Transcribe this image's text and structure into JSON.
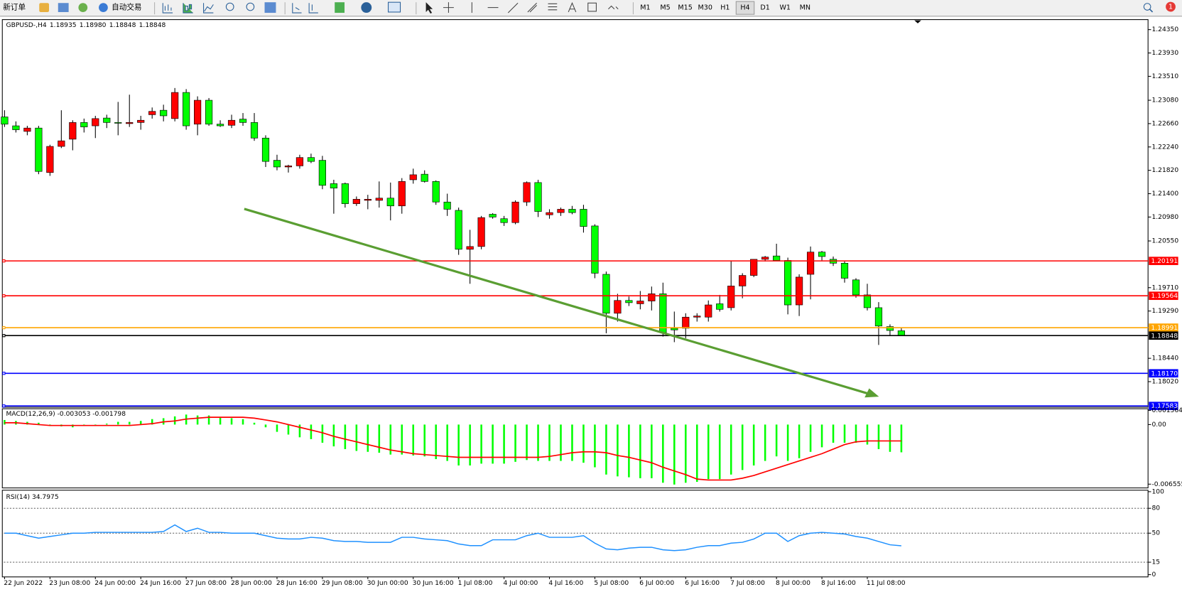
{
  "toolbar": {
    "new_order": "新订单",
    "auto_trading": "自动交易",
    "timeframes": [
      "M1",
      "M5",
      "M15",
      "M30",
      "H1",
      "H4",
      "D1",
      "W1",
      "MN"
    ],
    "active_timeframe": 5,
    "notifications": "1"
  },
  "chart_data": [
    {
      "type": "candlestick",
      "title": "GBPUSD-,H4",
      "quote": [
        "1.18935",
        "1.18980",
        "1.18848",
        "1.18848"
      ],
      "categories": [
        "22 Jun 2022",
        null,
        null,
        null,
        "23 Jun 08:00",
        null,
        null,
        null,
        "24 Jun 00:00",
        null,
        null,
        null,
        "24 Jun 16:00",
        null,
        null,
        null,
        "27 Jun 08:00",
        null,
        null,
        null,
        "28 Jun 00:00",
        null,
        null,
        null,
        "28 Jun 16:00",
        null,
        null,
        null,
        "29 Jun 08:00",
        null,
        null,
        null,
        "30 Jun 00:00",
        null,
        null,
        null,
        "30 Jun 16:00",
        null,
        null,
        null,
        "1 Jul 08:00",
        null,
        null,
        null,
        "4 Jul 00:00",
        null,
        null,
        null,
        "4 Jul 16:00",
        null,
        null,
        null,
        "5 Jul 08:00",
        null,
        null,
        null,
        "6 Jul 00:00",
        null,
        null,
        null,
        "6 Jul 16:00",
        null,
        null,
        null,
        "7 Jul 08:00",
        null,
        null,
        null,
        "8 Jul 00:00",
        null,
        null,
        null,
        "8 Jul 16:00",
        null,
        null,
        null,
        "11 Jul 08:00",
        null,
        null,
        null
      ],
      "open": [
        1.2278,
        1.2262,
        1.2252,
        1.2258,
        1.2178,
        1.2225,
        1.2238,
        1.2268,
        1.2262,
        1.2276,
        1.2268,
        1.2266,
        1.2268,
        1.2282,
        1.229,
        1.2275,
        1.2322,
        1.2265,
        1.2308,
        1.2265,
        1.2263,
        1.2274,
        1.2268,
        1.224,
        1.22,
        1.2188,
        1.219,
        1.2205,
        1.22,
        1.2158,
        1.2158,
        1.2122,
        1.2128,
        1.2128,
        1.2132,
        1.2118,
        1.2165,
        1.2175,
        1.2162,
        1.2125,
        1.211,
        1.204,
        1.2045,
        1.2103,
        1.2095,
        1.2088,
        1.2125,
        1.216,
        1.2102,
        1.2106,
        1.2112,
        1.2112,
        1.2082,
        1.1995,
        1.1925,
        1.1948,
        1.1942,
        1.1947,
        1.196,
        1.1898,
        1.1898,
        1.1918,
        1.1918,
        1.1942,
        1.1935,
        1.1974,
        1.1993,
        1.2022,
        1.2028,
        1.202,
        1.194,
        1.1995,
        1.2035,
        1.2022,
        1.2015,
        1.1985,
        1.1958,
        1.1935,
        1.1901,
        1.18935
      ],
      "high": [
        1.229,
        1.227,
        1.2262,
        1.2262,
        1.2228,
        1.229,
        1.2272,
        1.2275,
        1.228,
        1.2282,
        1.2305,
        1.2318,
        1.228,
        1.2295,
        1.23,
        1.233,
        1.2328,
        1.2315,
        1.2312,
        1.2272,
        1.2282,
        1.2285,
        1.2285,
        1.2245,
        1.221,
        1.2192,
        1.221,
        1.2212,
        1.2208,
        1.2165,
        1.216,
        1.2135,
        1.2138,
        1.2162,
        1.216,
        1.2168,
        1.2185,
        1.2182,
        1.2164,
        1.214,
        1.2115,
        1.2075,
        1.21,
        1.2105,
        1.21,
        1.2128,
        1.2162,
        1.2165,
        1.2112,
        1.2115,
        1.2118,
        1.212,
        1.2085,
        1.2,
        1.196,
        1.1955,
        1.1965,
        1.1973,
        1.198,
        1.1928,
        1.1925,
        1.1925,
        1.1948,
        1.1958,
        1.202,
        1.1997,
        1.2022,
        1.2028,
        1.205,
        1.2025,
        1.1995,
        1.2045,
        1.2037,
        1.2027,
        1.2018,
        1.1988,
        1.1978,
        1.1945,
        1.1905,
        1.1898
      ],
      "low": [
        1.226,
        1.225,
        1.2245,
        1.2175,
        1.2172,
        1.2222,
        1.2218,
        1.225,
        1.224,
        1.2258,
        1.2245,
        1.226,
        1.2255,
        1.2275,
        1.227,
        1.227,
        1.2255,
        1.2245,
        1.2262,
        1.226,
        1.2258,
        1.2262,
        1.2235,
        1.2188,
        1.2182,
        1.2178,
        1.2185,
        1.2195,
        1.2148,
        1.2104,
        1.2115,
        1.2118,
        1.2112,
        1.2115,
        1.2092,
        1.2104,
        1.2158,
        1.216,
        1.212,
        1.21,
        1.203,
        1.1978,
        1.204,
        1.2095,
        1.2082,
        1.2085,
        1.2118,
        1.2098,
        1.2095,
        1.21,
        1.2103,
        1.207,
        1.1988,
        1.1889,
        1.191,
        1.1938,
        1.1932,
        1.193,
        1.1883,
        1.1873,
        1.188,
        1.191,
        1.191,
        1.1928,
        1.193,
        1.1952,
        1.199,
        1.2018,
        1.202,
        1.1923,
        1.192,
        1.195,
        1.202,
        1.201,
        1.198,
        1.1953,
        1.193,
        1.1868,
        1.1884,
        1.18848
      ],
      "close": [
        1.2265,
        1.2255,
        1.2258,
        1.218,
        1.2225,
        1.2235,
        1.2268,
        1.226,
        1.2275,
        1.2268,
        1.2267,
        1.2268,
        1.2272,
        1.2288,
        1.228,
        1.2322,
        1.2262,
        1.2308,
        1.2265,
        1.2262,
        1.2272,
        1.2268,
        1.224,
        1.2198,
        1.2188,
        1.219,
        1.2205,
        1.2198,
        1.2155,
        1.215,
        1.2122,
        1.213,
        1.213,
        1.2132,
        1.2118,
        1.2162,
        1.2174,
        1.2162,
        1.2125,
        1.2112,
        1.204,
        1.2045,
        1.2097,
        1.2098,
        1.2088,
        1.2125,
        1.216,
        1.2108,
        1.2106,
        1.2112,
        1.2106,
        1.2081,
        1.1997,
        1.1925,
        1.1948,
        1.1944,
        1.1947,
        1.196,
        1.189,
        1.1895,
        1.1918,
        1.192,
        1.194,
        1.1932,
        1.1974,
        1.1993,
        1.2022,
        1.2026,
        1.202,
        1.194,
        1.199,
        1.2035,
        1.2027,
        1.2015,
        1.1988,
        1.1958,
        1.1935,
        1.1902,
        1.1894,
        1.18848
      ],
      "up_color": "#ff0000",
      "down_color": "#00ff00",
      "ylim": [
        1.1756,
        1.2453
      ],
      "yticks": [
        {
          "value": 1.2435,
          "label": "1.24350"
        },
        {
          "value": 1.2393,
          "label": "1.23930"
        },
        {
          "value": 1.2351,
          "label": "1.23510"
        },
        {
          "value": 1.2308,
          "label": "1.23080"
        },
        {
          "value": 1.2266,
          "label": "1.22660"
        },
        {
          "value": 1.2224,
          "label": "1.22240"
        },
        {
          "value": 1.2182,
          "label": "1.21820"
        },
        {
          "value": 1.214,
          "label": "1.21400"
        },
        {
          "value": 1.2098,
          "label": "1.20980"
        },
        {
          "value": 1.2055,
          "label": "1.20550"
        },
        {
          "value": 1.1971,
          "label": "1.19710"
        },
        {
          "value": 1.1929,
          "label": "1.19290"
        },
        {
          "value": 1.1844,
          "label": "1.18440"
        },
        {
          "value": 1.1802,
          "label": "1.18020"
        }
      ],
      "levels": [
        {
          "value": 1.20191,
          "label": "1.20191",
          "color": "#ff0000"
        },
        {
          "value": 1.19564,
          "label": "1.19564",
          "color": "#ff0000"
        },
        {
          "value": 1.18991,
          "label": "1.18991",
          "color": "#ffa500"
        },
        {
          "value": 1.18848,
          "label": "1.18848",
          "color": "#000000"
        },
        {
          "value": 1.1817,
          "label": "1.18170",
          "color": "#0000ff"
        },
        {
          "value": 1.17583,
          "label": "1.17583",
          "color": "#0000ff"
        }
      ]
    },
    {
      "type": "macd",
      "title": "MACD(12,26,9) -0.003053 -0.001798",
      "histogram": {
        "color": "#00ff00",
        "values": [
          0.0005,
          0.0004,
          0.0003,
          0.0002,
          -0.0001,
          -0.0002,
          -0.0003,
          0.0,
          0.0,
          0.0001,
          0.0003,
          0.0003,
          0.0004,
          0.0006,
          0.0007,
          0.0009,
          0.0011,
          0.001,
          0.001,
          0.0008,
          0.0007,
          0.0006,
          0.0002,
          -0.0003,
          -0.0008,
          -0.0011,
          -0.0014,
          -0.0016,
          -0.002,
          -0.0024,
          -0.0027,
          -0.0029,
          -0.003,
          -0.0031,
          -0.0033,
          -0.0033,
          -0.0034,
          -0.0035,
          -0.0038,
          -0.004,
          -0.0045,
          -0.0045,
          -0.0043,
          -0.0043,
          -0.0043,
          -0.0041,
          -0.0039,
          -0.004,
          -0.004,
          -0.004,
          -0.004,
          -0.0042,
          -0.0047,
          -0.0055,
          -0.0057,
          -0.0058,
          -0.0059,
          -0.0059,
          -0.0064,
          -0.0066,
          -0.0064,
          -0.0063,
          -0.006,
          -0.006,
          -0.0055,
          -0.005,
          -0.0045,
          -0.004,
          -0.0035,
          -0.004,
          -0.0037,
          -0.003,
          -0.0025,
          -0.002,
          -0.002,
          -0.002,
          -0.0022,
          -0.0027,
          -0.003,
          -0.003053
        ]
      },
      "signal": {
        "color": "#ff0000",
        "values": [
          0.0002,
          0.0002,
          0.0001,
          0.0,
          -0.0001,
          -0.0001,
          -0.0001,
          -0.0001,
          -0.0001,
          -0.0001,
          -0.0001,
          -0.0001,
          0.0,
          0.0001,
          0.0003,
          0.0004,
          0.0006,
          0.0007,
          0.0008,
          0.0008,
          0.0008,
          0.0008,
          0.0007,
          0.0005,
          0.0003,
          0.0,
          -0.0003,
          -0.0006,
          -0.0009,
          -0.0013,
          -0.0016,
          -0.0019,
          -0.0022,
          -0.0025,
          -0.0028,
          -0.003,
          -0.0032,
          -0.0033,
          -0.0034,
          -0.0035,
          -0.0036,
          -0.0036,
          -0.0036,
          -0.0036,
          -0.0036,
          -0.0036,
          -0.0036,
          -0.0036,
          -0.0035,
          -0.0033,
          -0.0031,
          -0.003,
          -0.003,
          -0.0031,
          -0.0034,
          -0.0036,
          -0.0039,
          -0.0042,
          -0.0047,
          -0.0051,
          -0.0055,
          -0.006,
          -0.0061,
          -0.0061,
          -0.0061,
          -0.0059,
          -0.0056,
          -0.0052,
          -0.0048,
          -0.0044,
          -0.004,
          -0.0036,
          -0.0032,
          -0.0027,
          -0.0022,
          -0.0019,
          -0.0018,
          -0.0018,
          -0.0018,
          -0.001798
        ]
      },
      "ylim": [
        -0.00697,
        0.00174
      ],
      "yticks": [
        0.001564,
        {
          "value": 0,
          "label": "0.00"
        },
        -0.006555
      ]
    },
    {
      "type": "line",
      "title": "RSI(14) 34.7975",
      "color": "#1e90ff",
      "values": [
        50,
        50,
        47,
        44,
        46,
        48,
        50,
        50,
        51,
        51,
        51,
        51,
        51,
        51,
        52,
        60,
        52,
        56,
        51,
        51,
        50,
        50,
        50,
        47,
        44,
        43,
        43,
        45,
        44,
        41,
        40,
        40,
        39,
        39,
        39,
        45,
        45,
        43,
        42,
        41,
        37,
        35,
        35,
        42,
        42,
        42,
        47,
        50,
        45,
        45,
        45,
        47,
        38,
        31,
        30,
        32,
        33,
        33,
        30,
        29,
        30,
        33,
        35,
        35,
        38,
        39,
        43,
        50,
        50,
        40,
        47,
        50,
        51,
        50,
        49,
        46,
        44,
        40,
        36,
        34.7975
      ],
      "ylim": [
        0,
        100
      ],
      "yticks": [
        100,
        80,
        50,
        15,
        0
      ]
    }
  ]
}
